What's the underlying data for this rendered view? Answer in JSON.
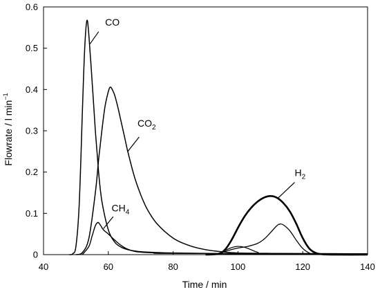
{
  "chart_data": {
    "type": "line",
    "xlabel": "Time / min",
    "ylabel": {
      "text": "Flowrate / l min",
      "superscript": "−1"
    },
    "xlim": [
      40,
      140
    ],
    "ylim": [
      0,
      0.6
    ],
    "xticks": [
      "40",
      "60",
      "80",
      "100",
      "120",
      "140"
    ],
    "yticks": [
      "0",
      "0.1",
      "0.2",
      "0.3",
      "0.4",
      "0.5",
      "0.6"
    ],
    "grid": false,
    "legend": "none",
    "line_color": "#000000",
    "series": [
      {
        "name": "CO",
        "x": [
          48,
          49,
          50,
          51,
          52,
          52.7,
          53.4,
          54,
          55,
          56,
          57,
          58,
          60,
          62,
          64,
          66,
          68,
          70,
          75,
          80,
          90,
          100,
          140
        ],
        "y": [
          0,
          0.002,
          0.02,
          0.12,
          0.35,
          0.5,
          0.567,
          0.53,
          0.42,
          0.3,
          0.2,
          0.13,
          0.06,
          0.03,
          0.018,
          0.012,
          0.009,
          0.007,
          0.005,
          0.004,
          0.003,
          0.002,
          0.002
        ]
      },
      {
        "name": "CO2",
        "x": [
          50,
          52,
          54,
          56,
          57,
          58,
          59,
          60,
          60.5,
          61,
          62,
          63,
          64,
          65,
          66,
          68,
          70,
          72,
          75,
          80,
          85,
          90,
          95,
          100,
          110,
          140
        ],
        "y": [
          0,
          0.005,
          0.04,
          0.15,
          0.23,
          0.3,
          0.36,
          0.395,
          0.405,
          0.403,
          0.385,
          0.355,
          0.32,
          0.285,
          0.25,
          0.19,
          0.145,
          0.11,
          0.075,
          0.04,
          0.022,
          0.012,
          0.007,
          0.004,
          0.003,
          0.002
        ]
      },
      {
        "name": "CH4",
        "x": [
          52,
          54,
          55,
          56,
          56.8,
          57.5,
          58.5,
          60,
          62,
          64,
          66,
          68,
          70,
          75,
          80,
          140
        ],
        "y": [
          0,
          0.02,
          0.045,
          0.07,
          0.078,
          0.072,
          0.06,
          0.05,
          0.035,
          0.022,
          0.013,
          0.008,
          0.006,
          0.004,
          0.003,
          0.002
        ]
      },
      {
        "name": "H2",
        "x": [
          90,
          94,
          96,
          98,
          100,
          102,
          104,
          106,
          108,
          110,
          112,
          114,
          116,
          118,
          120,
          122,
          124,
          126,
          130,
          140
        ],
        "y": [
          0,
          0.002,
          0.012,
          0.035,
          0.065,
          0.092,
          0.113,
          0.128,
          0.138,
          0.142,
          0.138,
          0.125,
          0.105,
          0.075,
          0.04,
          0.015,
          0.004,
          0.001,
          0,
          0
        ]
      },
      {
        "x": [
          94,
          97,
          100,
          103,
          106,
          108,
          110,
          112,
          113,
          114,
          116,
          118,
          120,
          122,
          124,
          140
        ],
        "y": [
          0.002,
          0.01,
          0.016,
          0.02,
          0.027,
          0.037,
          0.053,
          0.07,
          0.074,
          0.072,
          0.058,
          0.035,
          0.015,
          0.004,
          0.001,
          0
        ]
      },
      {
        "x": [
          94,
          96,
          98,
          100,
          102,
          104,
          106,
          110,
          140
        ],
        "y": [
          0.002,
          0.01,
          0.017,
          0.02,
          0.018,
          0.012,
          0.006,
          0.002,
          0.001
        ]
      }
    ],
    "annotations": [
      {
        "base": "CO",
        "sub": "",
        "x": 59,
        "y": 0.555,
        "leader": [
          [
            57,
            0.54
          ],
          [
            54.3,
            0.51
          ]
        ]
      },
      {
        "base": "CO",
        "sub": "2",
        "x": 69,
        "y": 0.31,
        "leader": [
          [
            69.5,
            0.285
          ],
          [
            66,
            0.25
          ]
        ]
      },
      {
        "base": "CH",
        "sub": "4",
        "x": 61,
        "y": 0.105,
        "leader": [
          [
            61.5,
            0.092
          ],
          [
            58.5,
            0.063
          ]
        ]
      },
      {
        "base": "H",
        "sub": "2",
        "x": 117.5,
        "y": 0.19,
        "leader": [
          [
            117.5,
            0.175
          ],
          [
            112.5,
            0.138
          ]
        ]
      }
    ]
  }
}
